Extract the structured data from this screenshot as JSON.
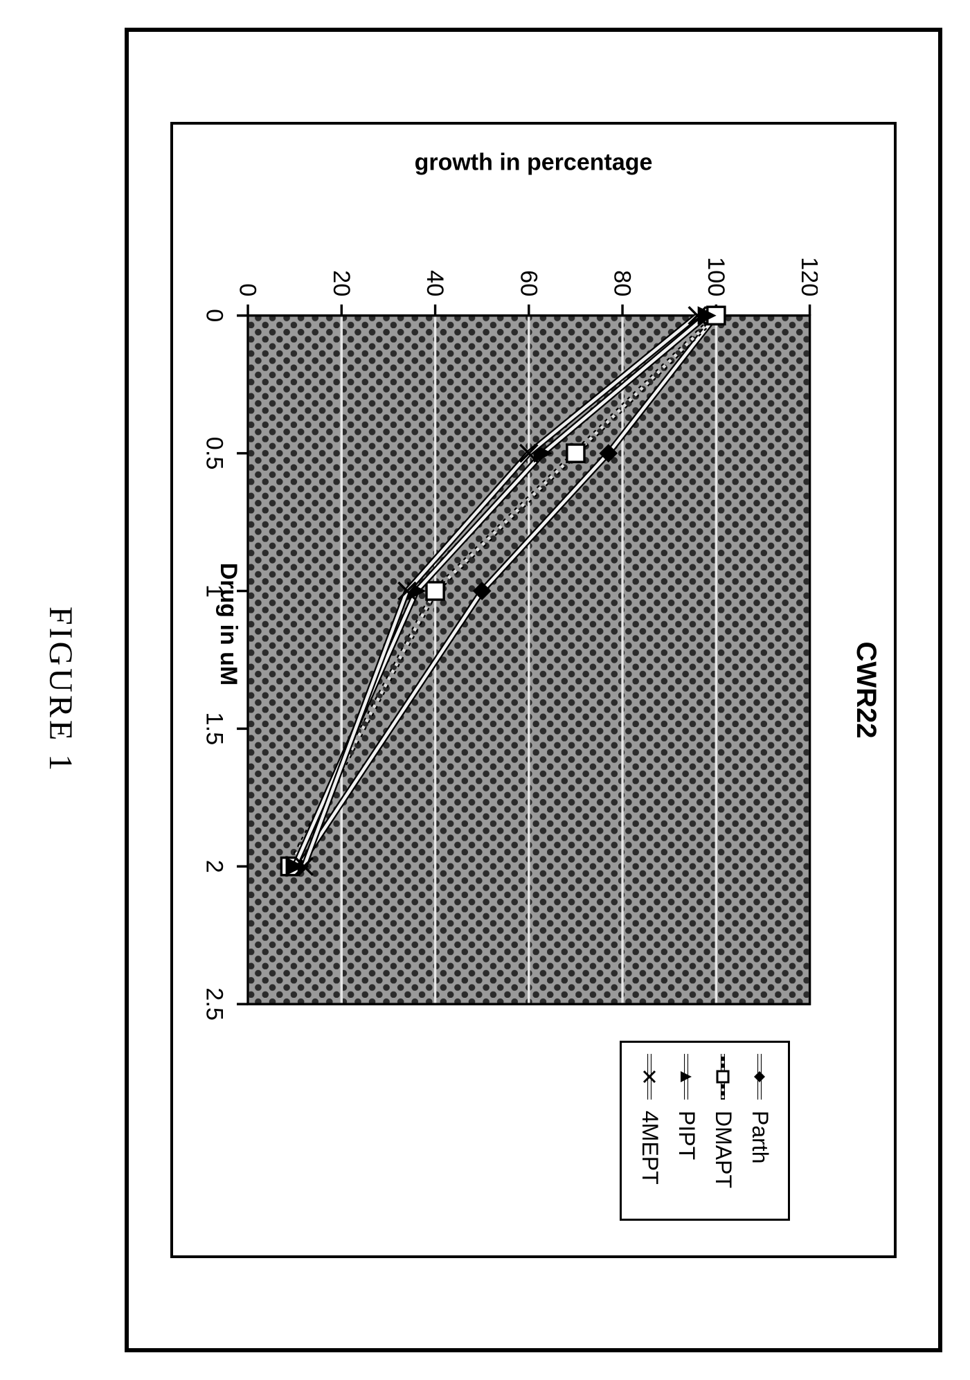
{
  "figure_caption": "FIGURE 1",
  "chart": {
    "type": "line",
    "title": "CWR22",
    "title_fontsize": 40,
    "xlabel": "Drug in uM",
    "ylabel": "growth in percentage",
    "label_fontsize": 34,
    "tick_fontsize": 30,
    "caption_fontsize": 48,
    "xlim": [
      0,
      2.5
    ],
    "ylim": [
      0,
      120
    ],
    "xticks": [
      0,
      0.5,
      1,
      1.5,
      2,
      2.5
    ],
    "yticks": [
      0,
      20,
      40,
      60,
      80,
      100,
      120
    ],
    "plot_background": "#9a9a9a",
    "plot_dot_color": "#2b2b2b",
    "gridline_color": "#e6e6e6",
    "axis_color": "#000000",
    "card_background": "#ffffff",
    "outer_border_color": "#000000",
    "line_width": 4,
    "marker_size": 11,
    "legend": {
      "position": "right",
      "border_color": "#000000",
      "background": "#ffffff",
      "fontsize": 32
    },
    "series": [
      {
        "name": "Parth",
        "marker": "diamond",
        "line_dash": "none",
        "color_line": "#f2f2f2",
        "color_marker": "#000000",
        "x": [
          0,
          0.5,
          1,
          2
        ],
        "y": [
          100,
          77,
          50,
          11
        ]
      },
      {
        "name": "DMAPT",
        "marker": "square-open",
        "line_dash": "4,6",
        "color_line": "#dddddd",
        "color_marker": "#000000",
        "x": [
          0,
          0.5,
          1,
          2
        ],
        "y": [
          100,
          70,
          40,
          9
        ]
      },
      {
        "name": "PIPT",
        "marker": "triangle",
        "line_dash": "none",
        "color_line": "#f2f2f2",
        "color_marker": "#000000",
        "x": [
          0,
          0.5,
          1,
          2
        ],
        "y": [
          98,
          63,
          36,
          10
        ]
      },
      {
        "name": "4MEPT",
        "marker": "x",
        "line_dash": "none",
        "color_line": "#eeeeee",
        "color_marker": "#000000",
        "x": [
          0,
          0.5,
          1,
          2
        ],
        "y": [
          96,
          60,
          34,
          12
        ]
      }
    ]
  }
}
